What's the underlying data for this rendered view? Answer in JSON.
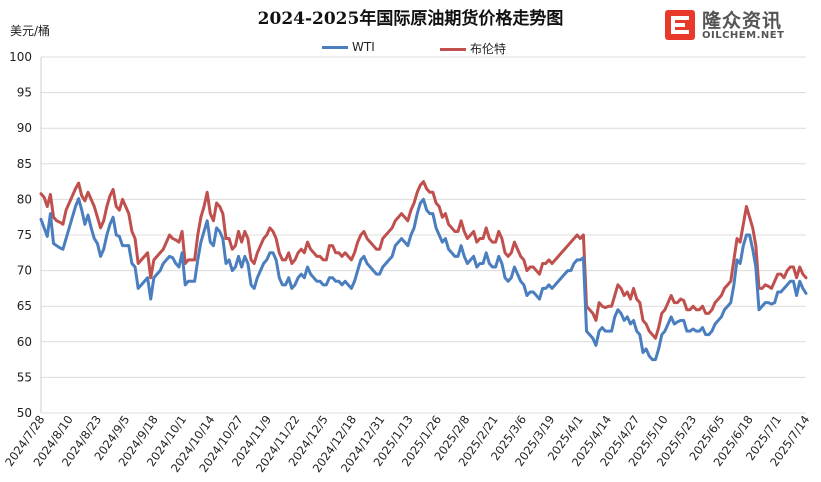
{
  "chart_data": {
    "type": "line",
    "title": "2024-2025年国际原油期货价格走势图",
    "ylabel": "美元/桶",
    "xlabel": "",
    "ylim": [
      50,
      100
    ],
    "yticks": [
      50,
      55,
      60,
      65,
      70,
      75,
      80,
      85,
      90,
      95,
      100
    ],
    "grid": "horizontal",
    "legend_position": "top-center",
    "x_tick_labels": [
      "2024/7/28",
      "2024/8/10",
      "2024/8/23",
      "2024/9/5",
      "2024/9/18",
      "2024/10/1",
      "2024/10/14",
      "2024/10/27",
      "2024/11/9",
      "2024/11/22",
      "2024/12/5",
      "2024/12/18",
      "2024/12/31",
      "2025/1/13",
      "2025/1/26",
      "2025/2/8",
      "2025/2/21",
      "2025/3/6",
      "2025/3/19",
      "2025/4/1",
      "2025/4/14",
      "2025/4/27",
      "2025/5/10",
      "2025/5/23",
      "2025/6/5",
      "2025/6/18",
      "2025/7/1",
      "2025/7/14"
    ],
    "series": [
      {
        "name": "WTI",
        "color": "#4a7ebf",
        "values": [
          77.2,
          76.0,
          74.8,
          78.0,
          73.8,
          73.5,
          73.2,
          73.0,
          74.5,
          76.0,
          77.5,
          79.0,
          80.1,
          78.5,
          76.5,
          77.8,
          76.0,
          74.5,
          73.8,
          72.0,
          73.0,
          75.0,
          76.5,
          77.5,
          75.0,
          74.8,
          73.5,
          73.5,
          73.5,
          71.0,
          70.5,
          67.5,
          68.0,
          68.5,
          69.0,
          66.0,
          69.0,
          69.5,
          70.0,
          71.0,
          71.5,
          72.0,
          71.8,
          71.0,
          70.5,
          72.5,
          68.0,
          68.5,
          68.5,
          68.5,
          71.5,
          74.0,
          75.5,
          77.0,
          74.0,
          73.5,
          76.0,
          75.5,
          74.5,
          71.0,
          71.5,
          70.0,
          70.5,
          72.0,
          70.5,
          72.0,
          71.0,
          68.0,
          67.5,
          69.0,
          70.0,
          71.0,
          71.5,
          72.5,
          72.5,
          71.5,
          69.0,
          68.0,
          68.0,
          69.0,
          67.5,
          68.0,
          69.0,
          69.5,
          69.0,
          70.5,
          69.5,
          69.0,
          68.5,
          68.5,
          68.0,
          68.0,
          69.0,
          69.0,
          68.5,
          68.5,
          68.0,
          68.5,
          68.0,
          67.5,
          68.5,
          70.0,
          71.5,
          72.0,
          71.0,
          70.5,
          70.0,
          69.5,
          69.5,
          70.5,
          71.0,
          71.5,
          72.0,
          73.5,
          74.0,
          74.5,
          74.0,
          73.5,
          75.0,
          76.0,
          78.0,
          79.5,
          80.0,
          78.5,
          78.0,
          78.0,
          76.0,
          75.0,
          74.0,
          74.5,
          73.0,
          72.5,
          72.0,
          72.0,
          73.5,
          72.0,
          71.0,
          71.5,
          72.0,
          70.5,
          71.0,
          71.0,
          72.5,
          71.0,
          70.5,
          70.5,
          72.0,
          71.0,
          69.0,
          68.5,
          69.0,
          70.5,
          69.5,
          68.5,
          68.0,
          66.5,
          67.0,
          67.0,
          66.5,
          66.0,
          67.5,
          67.5,
          68.0,
          67.5,
          68.0,
          68.5,
          69.0,
          69.5,
          70.0,
          70.0,
          71.0,
          71.5,
          71.5,
          71.8,
          61.5,
          61.0,
          60.5,
          59.5,
          61.5,
          62.0,
          61.5,
          61.5,
          61.5,
          63.5,
          64.5,
          64.0,
          63.0,
          63.5,
          62.5,
          63.0,
          61.5,
          61.0,
          58.5,
          59.0,
          58.0,
          57.5,
          57.5,
          59.0,
          61.0,
          61.5,
          62.5,
          63.5,
          62.5,
          62.8,
          63.0,
          63.0,
          61.5,
          61.5,
          61.8,
          61.5,
          61.5,
          62.0,
          61.0,
          61.0,
          61.5,
          62.5,
          63.0,
          63.5,
          64.5,
          65.0,
          65.5,
          68.0,
          71.5,
          71.0,
          73.5,
          75.0,
          75.0,
          73.0,
          70.5,
          64.5,
          65.0,
          65.5,
          65.5,
          65.3,
          65.5,
          67.0,
          67.0,
          67.5,
          68.0,
          68.5,
          68.5,
          66.5,
          68.5,
          67.5,
          66.8
        ]
      },
      {
        "name": "布伦特",
        "color": "#c0504d",
        "values": [
          80.8,
          80.3,
          79.0,
          80.7,
          77.5,
          77.0,
          76.8,
          76.5,
          78.5,
          79.5,
          80.5,
          81.5,
          82.3,
          80.5,
          79.8,
          81.0,
          80.0,
          79.0,
          77.5,
          76.0,
          77.0,
          79.0,
          80.5,
          81.4,
          79.0,
          78.5,
          80.0,
          79.0,
          78.0,
          75.5,
          74.5,
          71.0,
          71.5,
          72.0,
          72.5,
          69.0,
          71.5,
          72.0,
          72.5,
          73.0,
          74.0,
          75.0,
          74.5,
          74.3,
          74.0,
          75.5,
          71.0,
          71.5,
          71.5,
          71.5,
          75.0,
          77.5,
          79.0,
          81.0,
          78.0,
          77.0,
          79.5,
          79.0,
          78.0,
          74.5,
          74.5,
          73.0,
          73.5,
          75.5,
          74.0,
          75.5,
          74.5,
          71.5,
          71.0,
          72.5,
          73.5,
          74.5,
          75.0,
          76.0,
          75.5,
          74.5,
          72.5,
          71.5,
          71.5,
          72.5,
          71.0,
          71.5,
          72.5,
          73.0,
          72.5,
          74.0,
          73.0,
          72.5,
          72.0,
          72.0,
          71.5,
          71.5,
          73.5,
          73.5,
          72.5,
          72.5,
          72.0,
          72.5,
          72.0,
          71.5,
          72.5,
          74.0,
          75.0,
          75.5,
          74.5,
          74.0,
          73.5,
          73.0,
          73.0,
          74.5,
          75.0,
          75.5,
          76.0,
          77.0,
          77.5,
          78.0,
          77.5,
          77.0,
          78.5,
          79.5,
          81.0,
          82.0,
          82.5,
          81.5,
          81.0,
          81.0,
          79.5,
          79.0,
          77.5,
          78.0,
          76.5,
          76.0,
          75.5,
          75.5,
          77.0,
          75.5,
          74.5,
          75.0,
          75.5,
          74.0,
          74.5,
          74.5,
          76.0,
          74.5,
          74.0,
          74.0,
          75.5,
          74.5,
          72.5,
          72.0,
          72.5,
          74.0,
          73.0,
          72.0,
          71.5,
          70.0,
          70.5,
          70.5,
          70.0,
          69.5,
          71.0,
          71.0,
          71.5,
          71.0,
          71.5,
          72.0,
          72.5,
          73.0,
          73.5,
          74.0,
          74.5,
          75.0,
          74.5,
          75.0,
          65.0,
          64.5,
          64.0,
          63.0,
          65.5,
          65.0,
          64.8,
          65.0,
          65.0,
          66.5,
          68.0,
          67.5,
          66.5,
          67.0,
          66.0,
          67.5,
          66.0,
          65.5,
          63.0,
          62.5,
          61.5,
          61.0,
          60.5,
          62.0,
          64.0,
          64.5,
          65.5,
          66.5,
          65.5,
          65.5,
          66.0,
          65.8,
          64.5,
          64.5,
          65.0,
          64.5,
          64.5,
          65.0,
          64.0,
          64.0,
          64.5,
          65.5,
          66.0,
          66.5,
          67.5,
          68.0,
          68.5,
          71.5,
          74.5,
          74.0,
          76.5,
          79.0,
          77.5,
          76.0,
          73.5,
          67.5,
          67.5,
          68.0,
          67.8,
          67.5,
          68.5,
          69.5,
          69.5,
          69.0,
          70.0,
          70.5,
          70.5,
          69.0,
          70.5,
          69.5,
          69.0
        ]
      }
    ]
  },
  "logo": {
    "cn": "隆众资讯",
    "en": "OILCHEM.NET",
    "color": "#e8392b"
  }
}
